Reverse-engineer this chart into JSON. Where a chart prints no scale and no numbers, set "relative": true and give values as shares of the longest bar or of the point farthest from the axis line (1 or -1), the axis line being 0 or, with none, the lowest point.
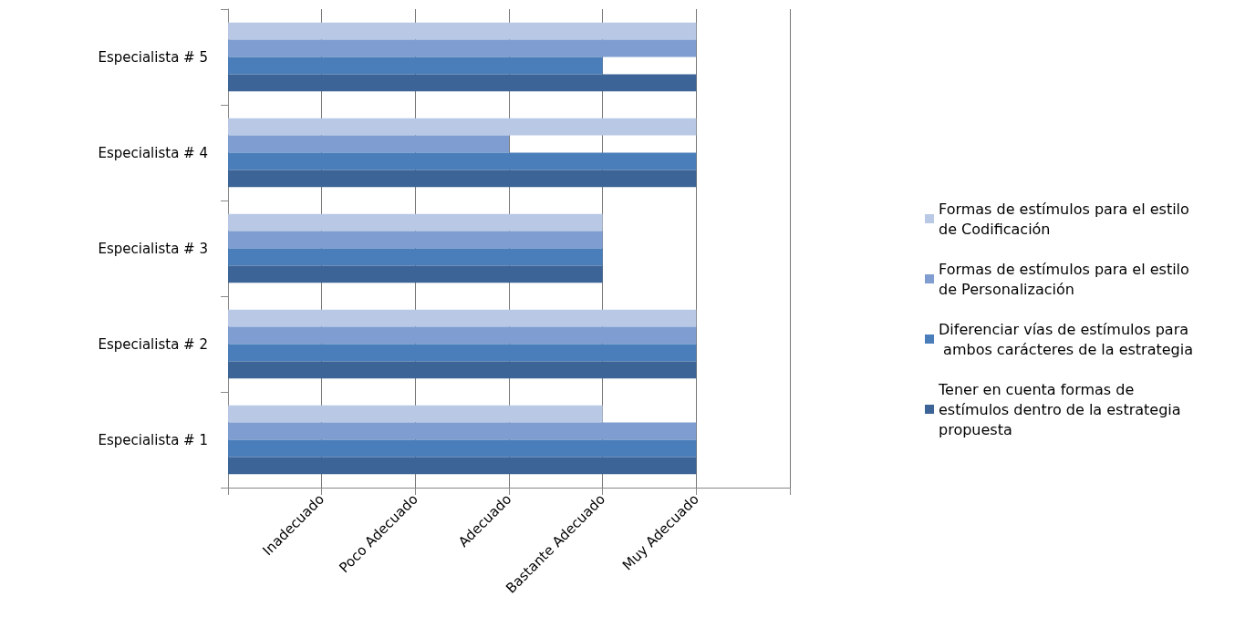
{
  "chart_data": {
    "type": "bar",
    "orientation": "horizontal",
    "relative": true,
    "categories": [
      "Especialista # 5",
      "Especialista # 4",
      "Especialista # 3",
      "Especialista # 2",
      "Especialista # 1"
    ],
    "series": [
      {
        "name": "Formas de estímulos para el estilo de Codificación",
        "color": "#b9c9e5",
        "values": [
          1,
          1,
          0.8,
          1,
          0.8
        ]
      },
      {
        "name": "Formas de estímulos para el estilo de Personalización",
        "color": "#7f9dd0",
        "values": [
          1,
          0.6,
          0.8,
          1,
          1
        ]
      },
      {
        "name": "Diferenciar vías de estímulos para ambos carácteres de la estrategia",
        "color": "#4a7ebb",
        "values": [
          0.8,
          1,
          0.8,
          1,
          1
        ]
      },
      {
        "name": "Tener en cuenta formas de estímulos dentro de la estrategia propuesta",
        "color": "#3c6496",
        "values": [
          1,
          1,
          0.8,
          1,
          1
        ]
      }
    ],
    "annotations": [
      "Inadecuado",
      "Poco Adecuado",
      "Adecuado",
      "Bastante Adecuado",
      "Muy Adecuado"
    ],
    "grid": "x",
    "legend": "right"
  }
}
